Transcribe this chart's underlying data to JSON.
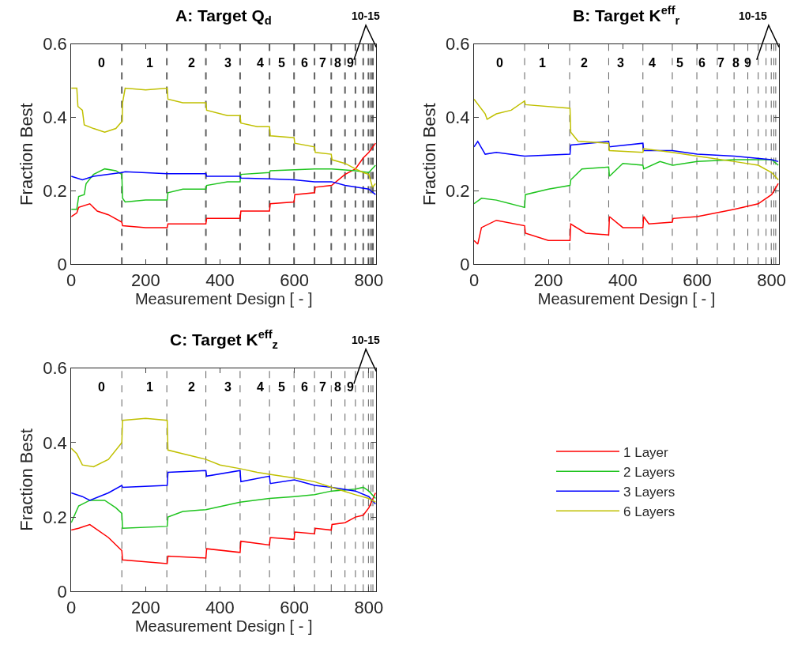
{
  "chart_data": [
    {
      "type": "line",
      "title": "A: Target Q$_{d}$",
      "xlabel": "Measurement Design [ - ]",
      "ylabel": "Fraction Best",
      "xlim": [
        0,
        820
      ],
      "ylim": [
        0,
        0.6
      ],
      "xticks": [
        0,
        200,
        400,
        600,
        800
      ],
      "yticks": [
        0,
        0.2,
        0.4,
        0.6
      ],
      "legend": "bottom right",
      "series": [
        {
          "name": "1 Layer",
          "color": "#ff0000",
          "x": [
            0,
            15,
            20,
            50,
            70,
            100,
            136,
            138,
            200,
            258,
            260,
            362,
            364,
            454,
            456,
            533,
            535,
            599,
            601,
            654,
            656,
            700,
            736,
            764,
            785,
            800,
            818
          ],
          "values": [
            0.13,
            0.14,
            0.155,
            0.165,
            0.145,
            0.135,
            0.115,
            0.105,
            0.1,
            0.1,
            0.11,
            0.11,
            0.125,
            0.125,
            0.145,
            0.145,
            0.165,
            0.17,
            0.19,
            0.195,
            0.21,
            0.215,
            0.245,
            0.26,
            0.29,
            0.305,
            0.33
          ]
        },
        {
          "name": "2 Layers",
          "color": "#1ec41e",
          "x": [
            0,
            15,
            20,
            35,
            40,
            60,
            90,
            120,
            136,
            138,
            145,
            200,
            258,
            260,
            300,
            362,
            364,
            420,
            454,
            456,
            533,
            535,
            654,
            700,
            764,
            800,
            818
          ],
          "values": [
            0.15,
            0.15,
            0.185,
            0.19,
            0.22,
            0.245,
            0.26,
            0.255,
            0.245,
            0.18,
            0.17,
            0.175,
            0.175,
            0.195,
            0.205,
            0.205,
            0.215,
            0.225,
            0.225,
            0.245,
            0.25,
            0.255,
            0.26,
            0.26,
            0.255,
            0.25,
            0.27
          ]
        },
        {
          "name": "3 Layers",
          "color": "#0000ff",
          "x": [
            0,
            30,
            60,
            136,
            145,
            258,
            362,
            364,
            454,
            456,
            533,
            600,
            654,
            700,
            736,
            800,
            818
          ],
          "values": [
            0.24,
            0.23,
            0.24,
            0.25,
            0.252,
            0.247,
            0.247,
            0.24,
            0.24,
            0.235,
            0.233,
            0.23,
            0.225,
            0.225,
            0.215,
            0.205,
            0.19
          ]
        },
        {
          "name": "6 Layers",
          "color": "#c0c000",
          "x": [
            0,
            15,
            18,
            30,
            35,
            60,
            90,
            120,
            137,
            138,
            145,
            200,
            258,
            260,
            300,
            362,
            364,
            420,
            454,
            456,
            500,
            533,
            535,
            599,
            601,
            654,
            656,
            699,
            701,
            736,
            764,
            785,
            800,
            810,
            818
          ],
          "values": [
            0.48,
            0.48,
            0.43,
            0.42,
            0.38,
            0.37,
            0.36,
            0.37,
            0.39,
            0.44,
            0.48,
            0.475,
            0.48,
            0.45,
            0.44,
            0.44,
            0.42,
            0.405,
            0.405,
            0.385,
            0.375,
            0.375,
            0.35,
            0.345,
            0.33,
            0.32,
            0.305,
            0.3,
            0.285,
            0.275,
            0.26,
            0.25,
            0.245,
            0.21,
            0.22
          ]
        }
      ],
      "ref_lines": [
        {
          "axis": "x",
          "value": 136,
          "color": "#606060",
          "line_style": "dashed"
        },
        {
          "axis": "x",
          "value": 257,
          "color": "#606060",
          "line_style": "dashed"
        },
        {
          "axis": "x",
          "value": 362,
          "color": "#606060",
          "line_style": "dashed"
        },
        {
          "axis": "x",
          "value": 454,
          "color": "#606060",
          "line_style": "dashed"
        },
        {
          "axis": "x",
          "value": 533,
          "color": "#606060",
          "line_style": "dashed"
        },
        {
          "axis": "x",
          "value": 599,
          "color": "#606060",
          "line_style": "dashed"
        },
        {
          "axis": "x",
          "value": 654,
          "color": "#606060",
          "line_style": "dashed"
        },
        {
          "axis": "x",
          "value": 699,
          "color": "#606060",
          "line_style": "dashed"
        },
        {
          "axis": "x",
          "value": 736,
          "color": "#606060",
          "line_style": "dashed"
        },
        {
          "axis": "x",
          "value": 764,
          "color": "#606060",
          "line_style": "dashed"
        },
        {
          "axis": "x",
          "value": 785,
          "color": "#606060",
          "line_style": "dashed"
        },
        {
          "axis": "x",
          "value": 799,
          "color": "#606060",
          "line_style": "dashed"
        },
        {
          "axis": "x",
          "value": 806,
          "color": "#606060",
          "line_style": "dashed"
        },
        {
          "axis": "x",
          "value": 811,
          "color": "#606060",
          "line_style": "dashed"
        }
      ],
      "annotations": [
        "0",
        "1",
        "2",
        "3",
        "4",
        "5",
        "6",
        "7",
        "8",
        "9",
        "10-15"
      ]
    },
    {
      "type": "line",
      "title": "B: Target K$^{eff}$$_{r}$",
      "xlabel": "Measurement Design [ - ]",
      "ylabel": "Fraction Best",
      "xlim": [
        0,
        820
      ],
      "ylim": [
        0,
        0.6
      ],
      "xticks": [
        0,
        200,
        400,
        600,
        800
      ],
      "yticks": [
        0,
        0.2,
        0.4,
        0.6
      ],
      "series": [
        {
          "color": "#ff0000",
          "x": [
            0,
            10,
            20,
            60,
            136,
            138,
            200,
            258,
            260,
            300,
            362,
            364,
            400,
            454,
            456,
            470,
            533,
            535,
            600,
            700,
            764,
            800,
            818
          ],
          "values": [
            0.065,
            0.055,
            0.1,
            0.12,
            0.105,
            0.085,
            0.065,
            0.065,
            0.11,
            0.085,
            0.08,
            0.13,
            0.1,
            0.1,
            0.13,
            0.11,
            0.115,
            0.125,
            0.13,
            0.15,
            0.165,
            0.19,
            0.22
          ]
        },
        {
          "color": "#1ec41e",
          "x": [
            0,
            20,
            60,
            136,
            138,
            200,
            258,
            260,
            290,
            362,
            364,
            400,
            454,
            456,
            500,
            533,
            535,
            600,
            700,
            800,
            818
          ],
          "values": [
            0.165,
            0.18,
            0.175,
            0.155,
            0.19,
            0.205,
            0.215,
            0.23,
            0.26,
            0.265,
            0.24,
            0.275,
            0.27,
            0.26,
            0.28,
            0.27,
            0.27,
            0.28,
            0.285,
            0.285,
            0.27
          ]
        },
        {
          "color": "#0000ff",
          "x": [
            0,
            10,
            30,
            60,
            136,
            258,
            260,
            362,
            364,
            454,
            456,
            533,
            600,
            700,
            800,
            818
          ],
          "values": [
            0.32,
            0.335,
            0.3,
            0.305,
            0.295,
            0.3,
            0.325,
            0.335,
            0.32,
            0.33,
            0.31,
            0.31,
            0.3,
            0.295,
            0.285,
            0.28
          ]
        },
        {
          "color": "#c0c000",
          "x": [
            0,
            30,
            35,
            60,
            100,
            136,
            138,
            258,
            260,
            280,
            362,
            364,
            454,
            456,
            533,
            600,
            700,
            764,
            800,
            818
          ],
          "values": [
            0.45,
            0.41,
            0.395,
            0.41,
            0.42,
            0.445,
            0.435,
            0.425,
            0.36,
            0.335,
            0.33,
            0.31,
            0.305,
            0.315,
            0.305,
            0.295,
            0.28,
            0.27,
            0.25,
            0.23
          ]
        }
      ],
      "ref_lines": [
        {
          "axis": "x",
          "value": 136,
          "color": "#606060",
          "line_style": "dashed"
        },
        {
          "axis": "x",
          "value": 257,
          "color": "#606060",
          "line_style": "dashed"
        },
        {
          "axis": "x",
          "value": 362,
          "color": "#606060",
          "line_style": "dashed"
        },
        {
          "axis": "x",
          "value": 454,
          "color": "#606060",
          "line_style": "dashed"
        },
        {
          "axis": "x",
          "value": 533,
          "color": "#606060",
          "line_style": "dashed"
        },
        {
          "axis": "x",
          "value": 599,
          "color": "#606060",
          "line_style": "dashed"
        },
        {
          "axis": "x",
          "value": 654,
          "color": "#606060",
          "line_style": "dashed"
        },
        {
          "axis": "x",
          "value": 699,
          "color": "#606060",
          "line_style": "dashed"
        },
        {
          "axis": "x",
          "value": 736,
          "color": "#606060",
          "line_style": "dashed"
        },
        {
          "axis": "x",
          "value": 764,
          "color": "#606060",
          "line_style": "dashed"
        },
        {
          "axis": "x",
          "value": 785,
          "color": "#606060",
          "line_style": "dashed"
        },
        {
          "axis": "x",
          "value": 799,
          "color": "#606060",
          "line_style": "dashed"
        },
        {
          "axis": "x",
          "value": 806,
          "color": "#606060",
          "line_style": "dashed"
        },
        {
          "axis": "x",
          "value": 811,
          "color": "#606060",
          "line_style": "dashed"
        }
      ],
      "annotations": [
        "0",
        "1",
        "2",
        "3",
        "4",
        "5",
        "6",
        "7",
        "8",
        "9",
        "10-15"
      ]
    },
    {
      "type": "line",
      "title": "C: Target K$^{eff}$$_{z}$",
      "xlabel": "Measurement Design [ - ]",
      "ylabel": "Fraction Best",
      "xlim": [
        0,
        820
      ],
      "ylim": [
        0,
        0.6
      ],
      "xticks": [
        0,
        200,
        400,
        600,
        800
      ],
      "yticks": [
        0,
        0.2,
        0.4,
        0.6
      ],
      "series": [
        {
          "color": "#ff0000",
          "x": [
            0,
            20,
            50,
            100,
            136,
            138,
            258,
            260,
            362,
            364,
            454,
            456,
            533,
            535,
            599,
            601,
            654,
            656,
            699,
            701,
            736,
            764,
            785,
            800,
            818
          ],
          "values": [
            0.165,
            0.17,
            0.18,
            0.145,
            0.11,
            0.085,
            0.075,
            0.095,
            0.09,
            0.115,
            0.105,
            0.135,
            0.125,
            0.145,
            0.14,
            0.16,
            0.155,
            0.17,
            0.165,
            0.18,
            0.185,
            0.2,
            0.205,
            0.225,
            0.265
          ]
        },
        {
          "color": "#1ec41e",
          "x": [
            0,
            20,
            50,
            90,
            120,
            136,
            138,
            258,
            260,
            300,
            362,
            454,
            533,
            600,
            654,
            700,
            764,
            785,
            800,
            818
          ],
          "values": [
            0.185,
            0.23,
            0.245,
            0.245,
            0.225,
            0.21,
            0.17,
            0.175,
            0.2,
            0.215,
            0.22,
            0.24,
            0.25,
            0.255,
            0.26,
            0.27,
            0.275,
            0.28,
            0.27,
            0.25
          ]
        },
        {
          "color": "#0000ff",
          "x": [
            0,
            30,
            50,
            100,
            136,
            138,
            258,
            260,
            362,
            364,
            454,
            456,
            533,
            535,
            600,
            654,
            700,
            764,
            800,
            818
          ],
          "values": [
            0.265,
            0.255,
            0.245,
            0.265,
            0.285,
            0.28,
            0.285,
            0.32,
            0.325,
            0.31,
            0.325,
            0.295,
            0.31,
            0.29,
            0.3,
            0.285,
            0.28,
            0.27,
            0.255,
            0.235
          ]
        },
        {
          "color": "#c0c000",
          "x": [
            0,
            15,
            30,
            60,
            100,
            136,
            138,
            200,
            258,
            260,
            300,
            362,
            400,
            454,
            500,
            533,
            600,
            654,
            700,
            764,
            800,
            818
          ],
          "values": [
            0.385,
            0.37,
            0.34,
            0.335,
            0.355,
            0.4,
            0.46,
            0.465,
            0.46,
            0.38,
            0.37,
            0.355,
            0.34,
            0.33,
            0.32,
            0.315,
            0.305,
            0.295,
            0.28,
            0.26,
            0.25,
            0.24
          ]
        }
      ],
      "ref_lines": [
        {
          "axis": "x",
          "value": 136,
          "color": "#606060",
          "line_style": "dashed"
        },
        {
          "axis": "x",
          "value": 257,
          "color": "#606060",
          "line_style": "dashed"
        },
        {
          "axis": "x",
          "value": 362,
          "color": "#606060",
          "line_style": "dashed"
        },
        {
          "axis": "x",
          "value": 454,
          "color": "#606060",
          "line_style": "dashed"
        },
        {
          "axis": "x",
          "value": 533,
          "color": "#606060",
          "line_style": "dashed"
        },
        {
          "axis": "x",
          "value": 599,
          "color": "#606060",
          "line_style": "dashed"
        },
        {
          "axis": "x",
          "value": 654,
          "color": "#606060",
          "line_style": "dashed"
        },
        {
          "axis": "x",
          "value": 699,
          "color": "#606060",
          "line_style": "dashed"
        },
        {
          "axis": "x",
          "value": 736,
          "color": "#606060",
          "line_style": "dashed"
        },
        {
          "axis": "x",
          "value": 764,
          "color": "#606060",
          "line_style": "dashed"
        },
        {
          "axis": "x",
          "value": 785,
          "color": "#606060",
          "line_style": "dashed"
        },
        {
          "axis": "x",
          "value": 799,
          "color": "#606060",
          "line_style": "dashed"
        },
        {
          "axis": "x",
          "value": 806,
          "color": "#606060",
          "line_style": "dashed"
        },
        {
          "axis": "x",
          "value": 811,
          "color": "#606060",
          "line_style": "dashed"
        }
      ],
      "annotations": [
        "0",
        "1",
        "2",
        "3",
        "4",
        "5",
        "6",
        "7",
        "8",
        "9",
        "10-15"
      ]
    }
  ]
}
